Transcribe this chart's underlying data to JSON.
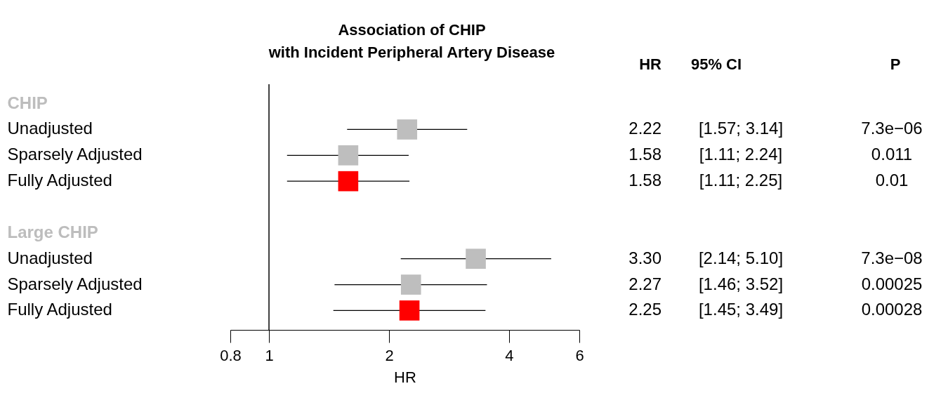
{
  "chart_data": {
    "type": "scatter",
    "orientation": "horizontal",
    "title": [
      "Association of CHIP",
      "with Incident Peripheral Artery Disease"
    ],
    "xlabel": "HR",
    "categories": [
      "CHIP",
      "Unadjusted",
      "Sparsely Adjusted",
      "Fully Adjusted",
      null,
      "Large CHIP",
      "Unadjusted",
      "Sparsely Adjusted",
      "Fully Adjusted"
    ],
    "values": [
      null,
      2.22,
      1.58,
      1.58,
      null,
      null,
      3.3,
      2.27,
      2.25
    ],
    "errors": [
      null,
      [
        1.57,
        3.14
      ],
      [
        1.11,
        2.24
      ],
      [
        1.11,
        2.25
      ],
      null,
      null,
      [
        2.14,
        5.1
      ],
      [
        1.46,
        3.52
      ],
      [
        1.45,
        3.49
      ]
    ],
    "value_labels": [
      null,
      "2.22",
      "1.58",
      "1.58",
      null,
      null,
      "3.30",
      "2.27",
      "2.25"
    ],
    "colors": [
      null,
      "#bebebe",
      "#bebebe",
      "#ff0000",
      null,
      null,
      "#bebebe",
      "#bebebe",
      "#ff0000"
    ],
    "annotations": [
      "HR",
      "95% CI",
      "P",
      "[1.57; 3.14]",
      "7.3e−06",
      "[1.11; 2.24]",
      "0.011",
      "[1.11; 2.25]",
      "0.01",
      "[2.14; 5.10]",
      "7.3e−08",
      "[1.46; 3.52]",
      "0.00025",
      "[1.45; 3.49]",
      "0.00028"
    ],
    "log": "x",
    "xlim": [
      0.8,
      6
    ],
    "xticks": [
      0.8,
      1,
      2,
      4,
      6
    ],
    "grid": false,
    "marker": "square",
    "ref_lines": [
      {
        "axis": "x",
        "value": 1,
        "color": "#000000"
      }
    ]
  }
}
